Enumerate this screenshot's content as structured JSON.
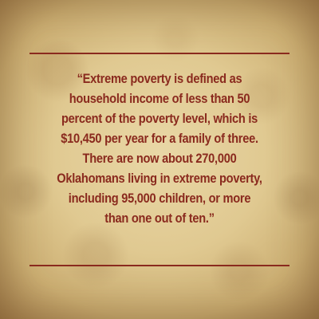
{
  "quote": {
    "lines": [
      "“Extreme poverty is defined as",
      "household income of less than 50",
      "percent of the poverty level, which is",
      "$10,450 per year for a family of three.",
      "There are now about 270,000",
      "Oklahomans living in extreme poverty,",
      "including 95,000 children, or more",
      "than one out of ten.”"
    ]
  },
  "colors": {
    "text": "#8a2a1e",
    "rules": "#8a2a1e",
    "background": "#e0c991"
  }
}
